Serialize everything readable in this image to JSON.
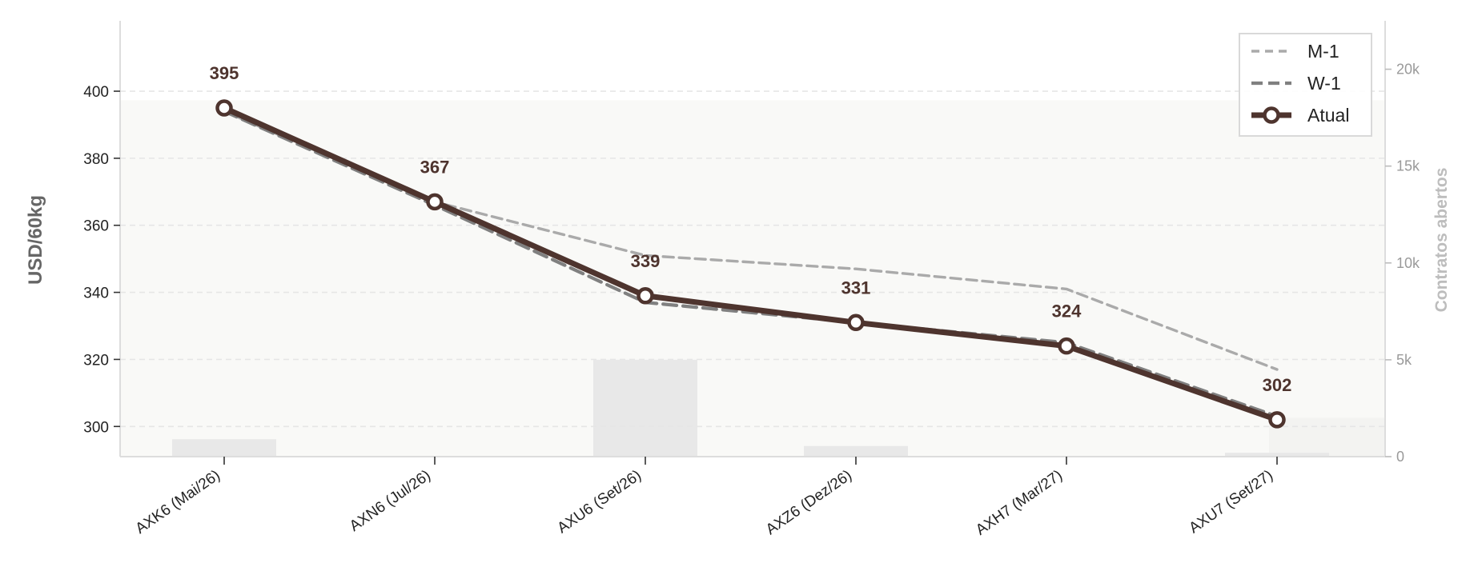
{
  "chart_data": {
    "type": "line",
    "categories": [
      "AXK6 (Mai/26)",
      "AXN6 (Jul/26)",
      "AXU6 (Set/26)",
      "AXZ6 (Dez/26)",
      "AXH7 (Mar/27)",
      "AXU7 (Set/27)"
    ],
    "series": [
      {
        "name": "M-1",
        "values": [
          394,
          367,
          351,
          347,
          341,
          317
        ],
        "style": "dashed",
        "color": "#aaaaaa"
      },
      {
        "name": "W-1",
        "values": [
          394,
          366,
          337,
          331,
          325,
          303
        ],
        "style": "dashed",
        "color": "#808080"
      },
      {
        "name": "Atual",
        "values": [
          395,
          367,
          339,
          331,
          324,
          302
        ],
        "style": "solid-marker",
        "color": "#4e342e",
        "data_labels": [
          "395",
          "367",
          "339",
          "331",
          "324",
          "302"
        ]
      }
    ],
    "secondary_series": {
      "name": "Contratos abertos",
      "type": "bar",
      "values": [
        900,
        0,
        5000,
        550,
        0,
        200
      ],
      "area_values": [
        18400,
        0,
        0,
        0,
        0,
        2000
      ],
      "color": "#e8e8e8"
    },
    "ylabel": "USD/60kg",
    "ylim": [
      291,
      421
    ],
    "yticks": [
      "300",
      "320",
      "340",
      "360",
      "380",
      "400"
    ],
    "y2label": "Contratos abertos",
    "y2lim": [
      0,
      22500
    ],
    "y2ticks": [
      "0",
      "5k",
      "10k",
      "15k",
      "20k"
    ],
    "grid": true,
    "legend_position": "top-right"
  }
}
